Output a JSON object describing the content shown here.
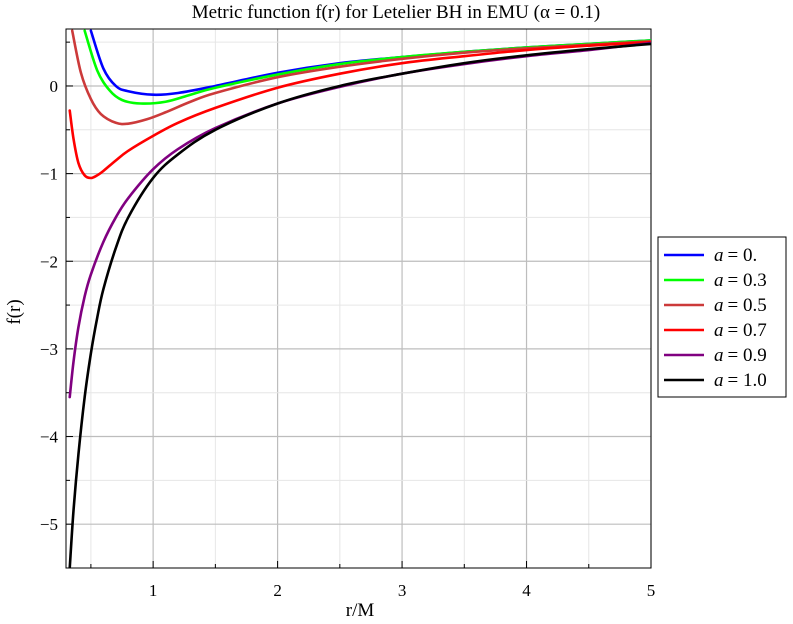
{
  "chart_data": {
    "type": "line",
    "title": "Metric function f(r) for Letelier BH in EMU (α = 0.1)",
    "xlabel": "r/M",
    "ylabel": "f(r)",
    "xlim": [
      0.3,
      5
    ],
    "ylim": [
      -5.5,
      0.65
    ],
    "x_ticks": [
      1,
      2,
      3,
      4,
      5
    ],
    "x_tick_labels": [
      "1",
      "2",
      "3",
      "4",
      "5"
    ],
    "y_ticks": [
      0,
      -1,
      -2,
      -3,
      -4,
      -5
    ],
    "y_tick_labels": [
      "0",
      "−1",
      "−2",
      "−3",
      "−4",
      "−5"
    ],
    "grid": true,
    "legend_position": "right",
    "series": [
      {
        "name": "a = 0.",
        "legend_symbol": "a",
        "legend_value": "= 0.",
        "color": "#0000ff",
        "x": [
          0.5,
          0.6,
          0.7,
          0.8,
          1.0,
          1.2,
          1.5,
          2.0,
          2.5,
          3.0,
          3.5,
          4.0,
          4.5,
          5.0
        ],
        "y": [
          0.63,
          0.2,
          0.0,
          -0.06,
          -0.1,
          -0.08,
          0.0,
          0.15,
          0.26,
          0.33,
          0.39,
          0.44,
          0.48,
          0.52
        ]
      },
      {
        "name": "a = 0.3",
        "legend_symbol": "a",
        "legend_value": "= 0.3",
        "color": "#00ff00",
        "x": [
          0.45,
          0.55,
          0.65,
          0.75,
          0.9,
          1.1,
          1.3,
          1.5,
          2.0,
          2.5,
          3.0,
          3.5,
          4.0,
          4.5,
          5.0
        ],
        "y": [
          0.63,
          0.18,
          -0.05,
          -0.16,
          -0.2,
          -0.18,
          -0.1,
          -0.02,
          0.13,
          0.25,
          0.33,
          0.39,
          0.44,
          0.48,
          0.52
        ]
      },
      {
        "name": "a = 0.5",
        "legend_symbol": "a",
        "legend_value": "= 0.5",
        "color": "#cc3a3a",
        "x": [
          0.35,
          0.42,
          0.5,
          0.58,
          0.7,
          0.8,
          0.95,
          1.1,
          1.3,
          1.5,
          2.0,
          2.5,
          3.0,
          3.5,
          4.0,
          4.5,
          5.0
        ],
        "y": [
          0.63,
          0.15,
          -0.15,
          -0.32,
          -0.42,
          -0.43,
          -0.38,
          -0.3,
          -0.18,
          -0.08,
          0.1,
          0.22,
          0.31,
          0.38,
          0.43,
          0.47,
          0.51
        ]
      },
      {
        "name": "a = 0.7",
        "legend_symbol": "a",
        "legend_value": "= 0.7",
        "color": "#ff0000",
        "x": [
          0.33,
          0.36,
          0.4,
          0.45,
          0.5,
          0.55,
          0.6,
          0.7,
          0.8,
          1.0,
          1.2,
          1.5,
          2.0,
          2.5,
          3.0,
          3.5,
          4.0,
          4.5,
          5.0
        ],
        "y": [
          -0.28,
          -0.6,
          -0.88,
          -1.02,
          -1.05,
          -1.02,
          -0.97,
          -0.85,
          -0.74,
          -0.57,
          -0.42,
          -0.25,
          -0.02,
          0.14,
          0.26,
          0.34,
          0.41,
          0.46,
          0.5
        ]
      },
      {
        "name": "a = 0.9",
        "legend_symbol": "a",
        "legend_value": "= 0.9",
        "color": "#800080",
        "x": [
          0.33,
          0.36,
          0.4,
          0.45,
          0.5,
          0.6,
          0.7,
          0.8,
          1.0,
          1.2,
          1.5,
          2.0,
          2.5,
          3.0,
          3.5,
          4.0,
          4.5,
          5.0
        ],
        "y": [
          -3.55,
          -3.15,
          -2.75,
          -2.4,
          -2.15,
          -1.78,
          -1.5,
          -1.28,
          -0.95,
          -0.72,
          -0.48,
          -0.2,
          -0.01,
          0.14,
          0.25,
          0.34,
          0.41,
          0.49
        ]
      },
      {
        "name": "a = 1.0",
        "legend_symbol": "a",
        "legend_value": "= 1.0",
        "color": "#000000",
        "x": [
          0.33,
          0.36,
          0.4,
          0.45,
          0.5,
          0.55,
          0.6,
          0.7,
          0.8,
          1.0,
          1.2,
          1.5,
          2.0,
          2.5,
          3.0,
          3.5,
          4.0,
          4.5,
          5.0
        ],
        "y": [
          -5.5,
          -4.85,
          -4.2,
          -3.55,
          -3.05,
          -2.65,
          -2.32,
          -1.85,
          -1.5,
          -1.05,
          -0.78,
          -0.5,
          -0.2,
          0.0,
          0.14,
          0.26,
          0.35,
          0.42,
          0.48
        ]
      }
    ]
  }
}
